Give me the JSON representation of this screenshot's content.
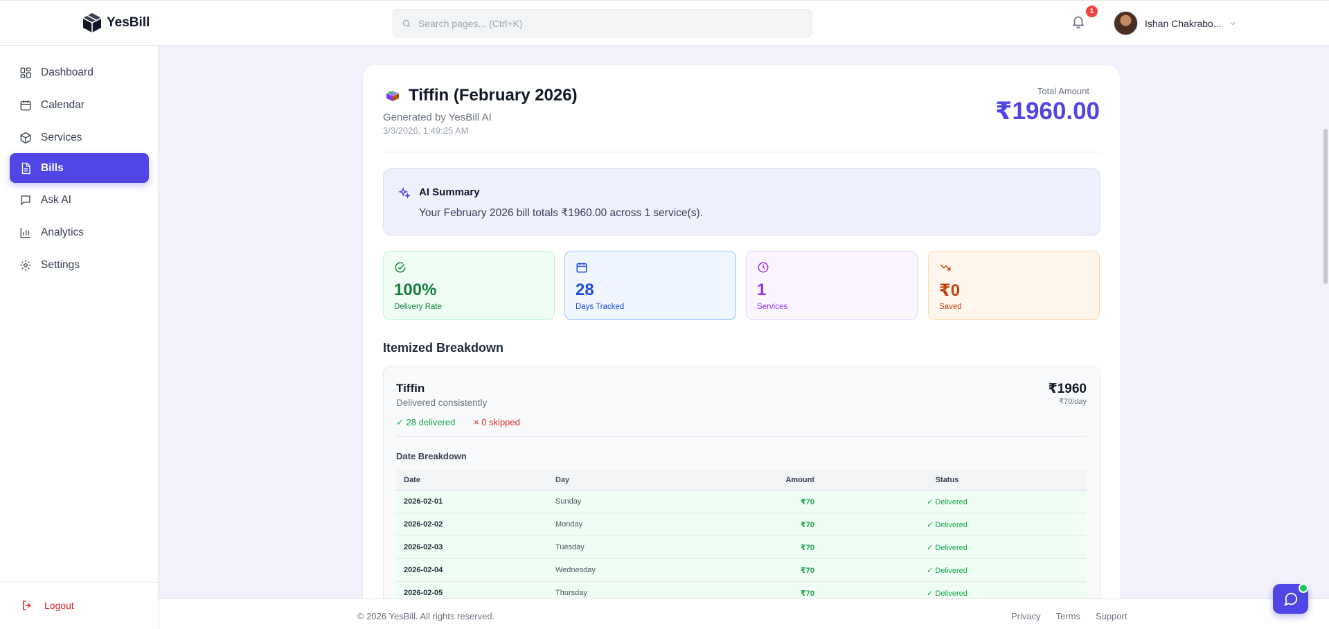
{
  "brand": {
    "name": "YesBill"
  },
  "search": {
    "placeholder": "Search pages... (Ctrl+K)"
  },
  "notifications": {
    "count": "1"
  },
  "user": {
    "name": "Ishan Chakrabo..."
  },
  "sidebar": {
    "items": [
      {
        "label": "Dashboard",
        "icon": "dashboard-icon"
      },
      {
        "label": "Calendar",
        "icon": "calendar-icon"
      },
      {
        "label": "Services",
        "icon": "box-icon"
      },
      {
        "label": "Bills",
        "icon": "file-icon",
        "active": true
      },
      {
        "label": "Ask AI",
        "icon": "chat-icon"
      },
      {
        "label": "Analytics",
        "icon": "bar-chart-icon"
      },
      {
        "label": "Settings",
        "icon": "gear-icon"
      }
    ],
    "logout": "Logout"
  },
  "bill": {
    "title": "Tiffin (February 2026)",
    "generated_by": "Generated by YesBill AI",
    "timestamp": "3/3/2026, 1:49:25 AM",
    "total_label": "Total Amount",
    "total_value": "₹1960.00"
  },
  "ai_summary": {
    "title": "AI Summary",
    "text": "Your February 2026 bill totals ₹1960.00 across 1 service(s)."
  },
  "stats": [
    {
      "value": "100%",
      "label": "Delivery Rate"
    },
    {
      "value": "28",
      "label": "Days Tracked"
    },
    {
      "value": "1",
      "label": "Services"
    },
    {
      "value": "₹0",
      "label": "Saved"
    }
  ],
  "itemized": {
    "title": "Itemized Breakdown",
    "service": {
      "name": "Tiffin",
      "description": "Delivered consistently",
      "amount": "₹1960",
      "rate": "₹70/day",
      "delivered": "28 delivered",
      "skipped": "0 skipped"
    },
    "breakdown_title": "Date Breakdown",
    "columns": [
      "Date",
      "Day",
      "Amount",
      "Status"
    ],
    "rows": [
      {
        "date": "2026-02-01",
        "day": "Sunday",
        "amount": "₹70",
        "status": "Delivered"
      },
      {
        "date": "2026-02-02",
        "day": "Monday",
        "amount": "₹70",
        "status": "Delivered"
      },
      {
        "date": "2026-02-03",
        "day": "Tuesday",
        "amount": "₹70",
        "status": "Delivered"
      },
      {
        "date": "2026-02-04",
        "day": "Wednesday",
        "amount": "₹70",
        "status": "Delivered"
      },
      {
        "date": "2026-02-05",
        "day": "Thursday",
        "amount": "₹70",
        "status": "Delivered"
      }
    ]
  },
  "footer": {
    "copyright": "© 2026 YesBill. All rights reserved.",
    "links": [
      "Privacy",
      "Terms",
      "Support"
    ]
  },
  "colors": {
    "accent": "#4f46e5",
    "success": "#16a34a",
    "danger": "#dc2626"
  }
}
